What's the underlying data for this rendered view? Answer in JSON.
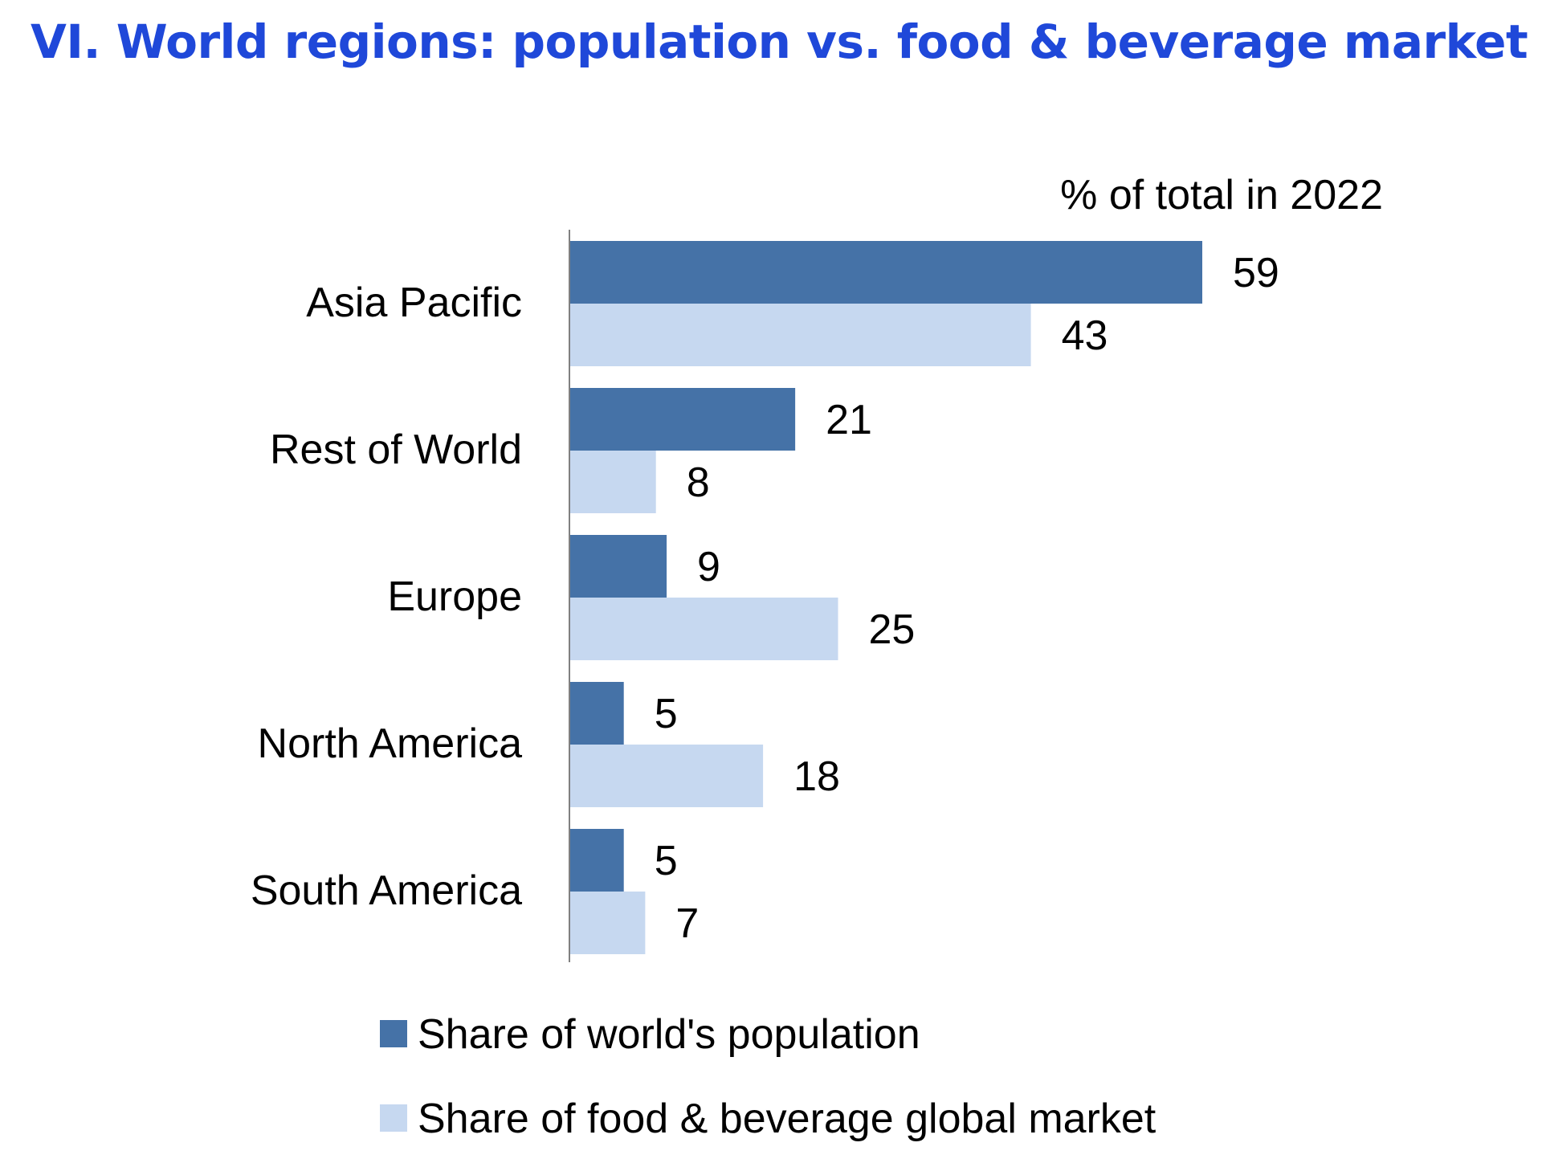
{
  "page_title": "VI. World regions: population vs. food & beverage market",
  "colors": {
    "title": "#1f48d9",
    "population": "#4572a7",
    "market": "#c6d8f0",
    "axis": "#808080",
    "text": "#000000"
  },
  "chart_data": {
    "type": "bar",
    "orientation": "horizontal",
    "title": "VI. World regions: population vs. food & beverage market",
    "unit_label": "% of total in 2022",
    "categories": [
      "Asia Pacific",
      "Rest of World",
      "Europe",
      "North America",
      "South America"
    ],
    "series": [
      {
        "name": "Share of world's population",
        "values": [
          59,
          21,
          9,
          5,
          5
        ]
      },
      {
        "name": "Share of food & beverage global market",
        "values": [
          43,
          8,
          25,
          18,
          7
        ]
      }
    ],
    "xlim": [
      0,
      59
    ],
    "grid": false,
    "legend_position": "bottom",
    "data_labels": true
  }
}
